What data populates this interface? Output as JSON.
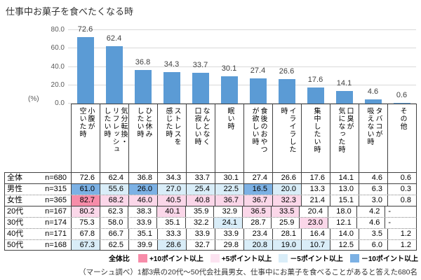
{
  "title": "仕事中お菓子を食べたくなる時",
  "chart_data": {
    "type": "bar",
    "title": "仕事中お菓子を食べたくなる時",
    "categories": [
      "小腹が空いた時",
      "気分転換・リフレッシュしたい時",
      "ひと休みしたい時",
      "ストレスを感じた時",
      "なんとなく口寂しい時",
      "眠い時",
      "食後のおやつが欲しい時",
      "イライラした時",
      "集中したい時",
      "口臭が気になった時",
      "タバコが吸えない時",
      "その他"
    ],
    "values": [
      72.6,
      62.4,
      36.8,
      34.3,
      33.7,
      30.1,
      27.4,
      26.6,
      17.6,
      14.1,
      4.6,
      0.6
    ],
    "ylabel": "(%)",
    "ylim": [
      0,
      80
    ],
    "ytick_labels": [
      "0.0",
      "20.0",
      "40.0",
      "60.0",
      "80.0"
    ],
    "grid": true,
    "legend_position": "none",
    "bar_color": "#5b9bd5"
  },
  "table": {
    "categories_display": [
      "小腹が\n空いた時",
      "気分転換・\nリフレッシュ\nしたい時",
      "ひと休み\nしたい時",
      "ストレスを\n感じた時",
      "なんとなく\n口寂しい時",
      "眠い時",
      "食後のおやつ\nが欲しい時",
      "イライラした\n時",
      "集中したい時",
      "口臭が\n気になった時",
      "タバコが\n吸えない時",
      "その他"
    ],
    "rows": [
      {
        "label": "全体",
        "n": "n=680",
        "values": [
          "72.6",
          "62.4",
          "36.8",
          "34.3",
          "33.7",
          "30.1",
          "27.4",
          "26.6",
          "17.6",
          "14.1",
          "4.6",
          "0.6"
        ],
        "highlights": [
          null,
          null,
          null,
          null,
          null,
          null,
          null,
          null,
          null,
          null,
          null,
          null
        ]
      },
      {
        "label": "男性",
        "n": "n=315",
        "values": [
          "61.0",
          "55.6",
          "26.0",
          "27.0",
          "25.4",
          "22.5",
          "16.5",
          "20.0",
          "13.3",
          "13.0",
          "6.3",
          "0.3"
        ],
        "highlights": [
          "bb",
          "b",
          "bb",
          "b",
          "b",
          "b",
          "bb",
          "b",
          null,
          null,
          null,
          null
        ]
      },
      {
        "label": "女性",
        "n": "n=365",
        "values": [
          "82.7",
          "68.2",
          "46.0",
          "40.5",
          "40.8",
          "36.7",
          "36.7",
          "32.3",
          "21.4",
          "15.1",
          "3.0",
          "0.8"
        ],
        "highlights": [
          "pp",
          "p",
          "p",
          "p",
          "p",
          "p",
          "p",
          "p",
          null,
          null,
          null,
          null
        ]
      },
      {
        "label": "20代",
        "n": "n=167",
        "values": [
          "80.2",
          "62.3",
          "38.3",
          "40.1",
          "35.9",
          "32.9",
          "36.5",
          "33.5",
          "20.4",
          "18.0",
          "4.2",
          "-"
        ],
        "highlights": [
          "p",
          null,
          null,
          "p",
          null,
          null,
          "p",
          "p",
          null,
          null,
          null,
          null
        ]
      },
      {
        "label": "30代",
        "n": "n=174",
        "values": [
          "75.3",
          "58.0",
          "33.9",
          "35.1",
          "32.2",
          "24.1",
          "28.7",
          "25.9",
          "23.0",
          "12.1",
          "4.6",
          "-"
        ],
        "highlights": [
          null,
          null,
          null,
          null,
          null,
          "b",
          null,
          null,
          "p",
          null,
          null,
          null
        ]
      },
      {
        "label": "40代",
        "n": "n=171",
        "values": [
          "67.8",
          "66.7",
          "35.1",
          "33.3",
          "33.9",
          "33.9",
          "23.4",
          "28.1",
          "16.4",
          "14.0",
          "3.5",
          "1.2"
        ],
        "highlights": [
          null,
          null,
          null,
          null,
          null,
          null,
          null,
          null,
          null,
          null,
          null,
          null
        ]
      },
      {
        "label": "50代",
        "n": "n=168",
        "values": [
          "67.3",
          "62.5",
          "39.9",
          "28.6",
          "32.7",
          "29.8",
          "20.8",
          "19.0",
          "10.7",
          "12.5",
          "6.0",
          "1.2"
        ],
        "highlights": [
          "b",
          null,
          null,
          "b",
          null,
          null,
          "b",
          "b",
          "b",
          null,
          null,
          null
        ]
      }
    ]
  },
  "highlight_colors": {
    "pp": "#F78CA9",
    "p": "#FBD7E9",
    "b": "#D9EDF8",
    "bb": "#7CB1E4"
  },
  "legend": {
    "title": "全体比",
    "items": [
      {
        "label": "+10ポイント以上",
        "color": "#F78CA9"
      },
      {
        "label": "+5ポイント以上",
        "color": "#FCE3F1"
      },
      {
        "label": "－5ポイント以上",
        "color": "#D9EDF8"
      },
      {
        "label": "－10ポイント以上",
        "color": "#7CB1E4"
      }
    ]
  },
  "footer": "（マーシュ調べ）1都3県の20代～50代会社員男女、仕事中にお菓子を食べることがあると答えた680名"
}
